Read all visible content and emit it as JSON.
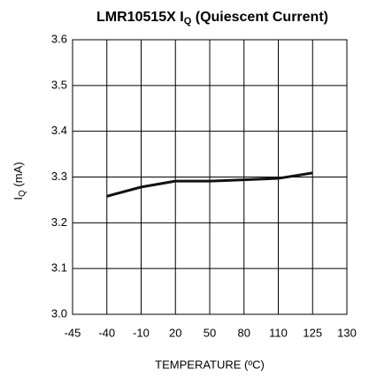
{
  "chart_data": {
    "type": "line",
    "title": [
      "LMR10515X I",
      "Q",
      " (Quiescent Current)"
    ],
    "y_label": [
      "I",
      "Q",
      " (mA)"
    ],
    "x_label": "TEMPERATURE (ºC)",
    "categories": [
      "-45",
      "-40",
      "-10",
      "20",
      "50",
      "80",
      "110",
      "125",
      "130"
    ],
    "series": [
      {
        "name": "IQ",
        "color": "#111111",
        "values": [
          null,
          3.258,
          3.278,
          3.291,
          3.291,
          3.294,
          3.297,
          3.309,
          null
        ]
      }
    ],
    "ylim": [
      3.0,
      3.6
    ],
    "yticks": [
      {
        "value": 3.0,
        "label": "3.0"
      },
      3.1,
      3.2,
      3.3,
      3.4,
      3.5,
      3.6
    ],
    "grid": true
  }
}
